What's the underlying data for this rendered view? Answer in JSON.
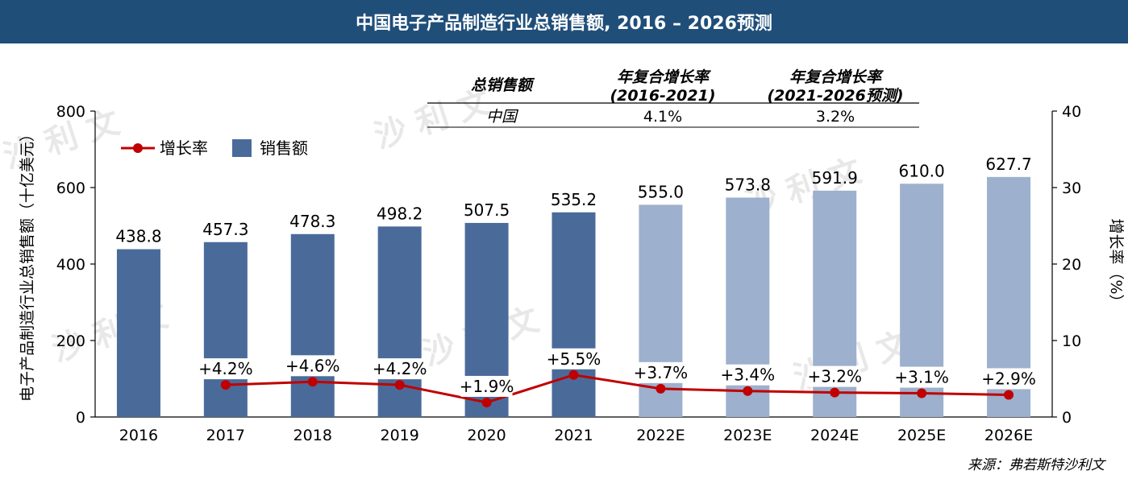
{
  "title": "中国电子产品制造行业总销售额, 2016 – 2026预测",
  "source": "来源：弗若斯特沙利文",
  "watermark": "沙 利 文",
  "cagr_table": {
    "col1": "总销售额",
    "col2_line1": "年复合增长率",
    "col2_line2": "(2016-2021)",
    "col3_line1": "年复合增长率",
    "col3_line2": "(2021-2026预测)",
    "row_label": "中国",
    "row_v1": "4.1%",
    "row_v2": "3.2%"
  },
  "chart_data": {
    "type": "bar",
    "categories": [
      "2016",
      "2017",
      "2018",
      "2019",
      "2020",
      "2021",
      "2022E",
      "2023E",
      "2024E",
      "2025E",
      "2026E"
    ],
    "series": [
      {
        "name": "销售额",
        "axis": "left",
        "type": "bar",
        "values": [
          438.8,
          457.3,
          478.3,
          498.2,
          507.5,
          535.2,
          555.0,
          573.8,
          591.9,
          610.0,
          627.7
        ],
        "labels": [
          "438.8",
          "457.3",
          "478.3",
          "498.2",
          "507.5",
          "535.2",
          "555.0",
          "573.8",
          "591.9",
          "610.0",
          "627.7"
        ]
      },
      {
        "name": "增长率",
        "axis": "right",
        "type": "line",
        "values": [
          null,
          4.2,
          4.6,
          4.2,
          1.9,
          5.5,
          3.7,
          3.4,
          3.2,
          3.1,
          2.9
        ],
        "labels": [
          "",
          "+4.2%",
          "+4.6%",
          "+4.2%",
          "+1.9%",
          "+5.5%",
          "+3.7%",
          "+3.4%",
          "+3.2%",
          "+3.1%",
          "+2.9%"
        ]
      }
    ],
    "forecast_from_index": 6,
    "ylabel": "电子产品制造行业总销售额（十亿美元）",
    "ylabel_right": "增长率（%）",
    "ylim": [
      0,
      800
    ],
    "yticks": [
      "0",
      "200",
      "400",
      "600",
      "800"
    ],
    "ylim_right": [
      0,
      40
    ],
    "yticks_right": [
      "0",
      "10",
      "20",
      "30",
      "40"
    ],
    "legend_placement": "top-left",
    "grid": false,
    "colors": {
      "actual": "#4a6b9a",
      "forecast": "#9db0cd",
      "line": "#c00000",
      "title_bg": "#1f4e79"
    }
  }
}
